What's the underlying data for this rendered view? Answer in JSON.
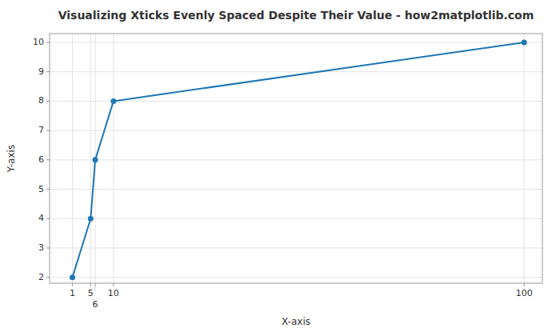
{
  "chart_data": {
    "type": "line",
    "title": "Visualizing Xticks Evenly Spaced Despite Their Value - how2matplotlib.com",
    "x_label": "X-axis",
    "y_label": "Y-axis",
    "x": [
      1,
      5,
      6,
      10,
      100
    ],
    "values": [
      2,
      4,
      6,
      8,
      10
    ],
    "color": "#1f77b4",
    "marker": "circle",
    "xlim": [
      -4,
      104
    ],
    "ylim": [
      1.8,
      10.3
    ],
    "xticks": [
      1,
      5,
      6,
      10,
      100
    ],
    "yticks": [
      2,
      3,
      4,
      5,
      6,
      7,
      8,
      9,
      10
    ],
    "grid": true
  }
}
